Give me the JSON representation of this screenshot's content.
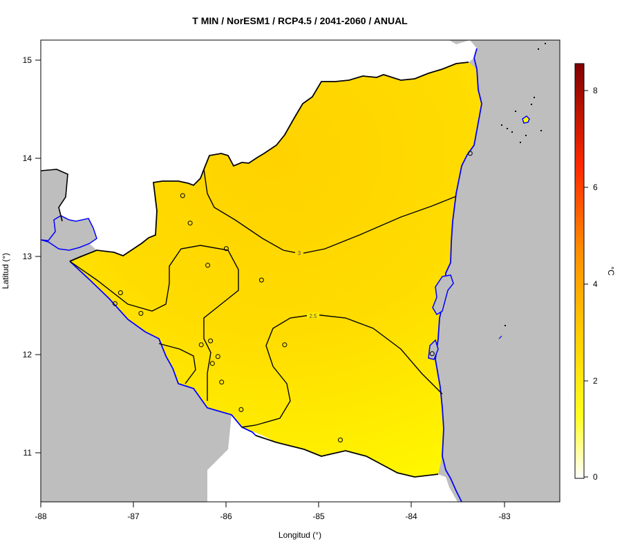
{
  "title": "T MIN / NorESM1 / RCP4.5 / 2041-2060 / ANUAL",
  "xlabel": "Longitud (°)",
  "ylabel": "Latitud (°)",
  "colorbar": {
    "unit": "°C",
    "ticks": [
      "0",
      "2",
      "4",
      "6",
      "8"
    ],
    "range": [
      0,
      8.6
    ],
    "colors": [
      "#ffffff",
      "#ffff00",
      "#ffc000",
      "#ff8000",
      "#ff0000",
      "#800000"
    ]
  },
  "x_ticks": [
    "-88",
    "-87",
    "-86",
    "-85",
    "-84",
    "-83"
  ],
  "y_ticks": [
    "11",
    "12",
    "13",
    "14",
    "15"
  ],
  "contour_labels": [
    "3",
    "2.5"
  ],
  "map": {
    "xlim": [
      -88,
      -82.4
    ],
    "ylim": [
      10.5,
      15.2
    ],
    "land_color": "#bebebe",
    "coast_color": "#0000ff",
    "border_color": "#000000",
    "field_colors": [
      "#ffd000",
      "#ffff00"
    ]
  },
  "chart_data": {
    "type": "heatmap",
    "title": "T MIN / NorESM1 / RCP4.5 / 2041-2060 / ANUAL",
    "xlabel": "Longitud (°)",
    "ylabel": "Latitud (°)",
    "xlim": [
      -88,
      -82.4
    ],
    "ylim": [
      10.5,
      15.2
    ],
    "colorbar_range": [
      0,
      8.6
    ],
    "colorbar_unit": "°C",
    "contour_levels": [
      2.5,
      3
    ],
    "stations": [
      {
        "lon": -86.47,
        "lat": 13.62
      },
      {
        "lon": -86.39,
        "lat": 13.34
      },
      {
        "lon": -86.0,
        "lat": 13.08
      },
      {
        "lon": -86.2,
        "lat": 12.91
      },
      {
        "lon": -85.62,
        "lat": 12.76
      },
      {
        "lon": -87.14,
        "lat": 12.63
      },
      {
        "lon": -87.2,
        "lat": 12.52
      },
      {
        "lon": -86.92,
        "lat": 12.42
      },
      {
        "lon": -86.27,
        "lat": 12.1
      },
      {
        "lon": -86.17,
        "lat": 12.14
      },
      {
        "lon": -85.37,
        "lat": 12.1
      },
      {
        "lon": -86.09,
        "lat": 11.98
      },
      {
        "lon": -86.15,
        "lat": 11.91
      },
      {
        "lon": -86.05,
        "lat": 11.72
      },
      {
        "lon": -85.84,
        "lat": 11.44
      },
      {
        "lon": -84.77,
        "lat": 11.13
      },
      {
        "lon": -83.78,
        "lat": 12.01
      },
      {
        "lon": -83.37,
        "lat": 14.05
      }
    ]
  }
}
